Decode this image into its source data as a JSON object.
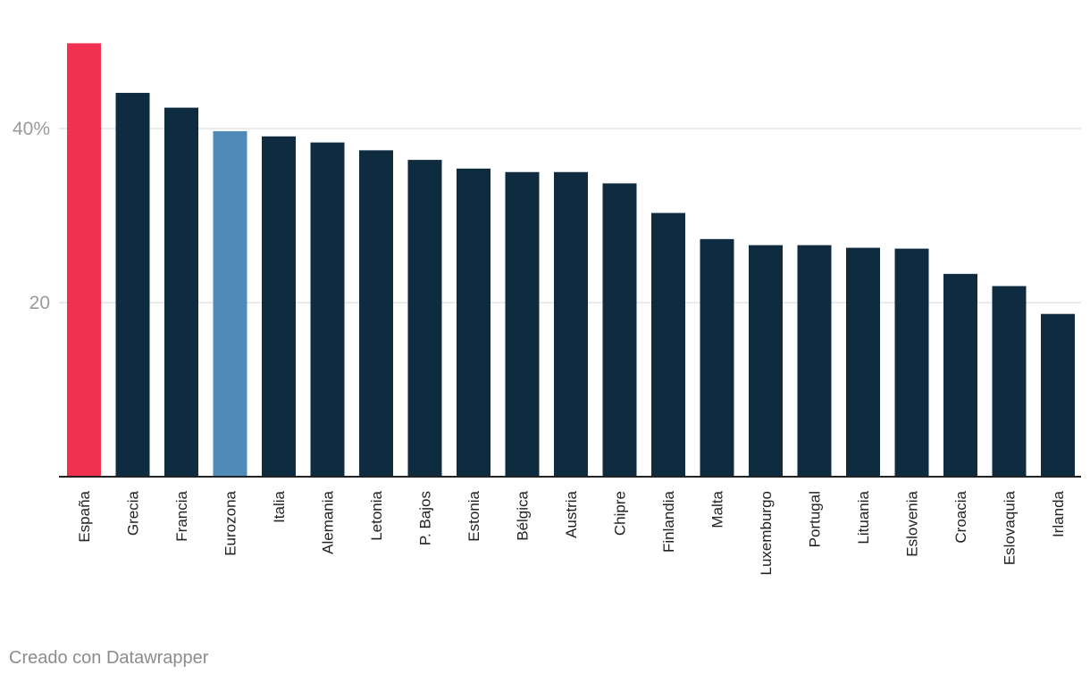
{
  "chart_data": {
    "type": "bar",
    "title": "",
    "xlabel": "",
    "ylabel": "",
    "ylim": [
      0,
      50
    ],
    "grid": "horizontal",
    "y_ticks": [
      {
        "value": 20,
        "label": "20"
      },
      {
        "value": 40,
        "label": "40%"
      }
    ],
    "categories": [
      "España",
      "Grecia",
      "Francia",
      "Eurozona",
      "Italia",
      "Alemania",
      "Letonia",
      "P. Bajos",
      "Estonia",
      "Bélgica",
      "Austria",
      "Chipre",
      "Finlandia",
      "Malta",
      "Luxemburgo",
      "Portugal",
      "Lituania",
      "Eslovenia",
      "Croacia",
      "Eslovaquia",
      "Irlanda"
    ],
    "values": [
      49.8,
      44.1,
      42.4,
      39.7,
      39.1,
      38.4,
      37.5,
      36.4,
      35.4,
      35.0,
      35.0,
      33.7,
      30.3,
      27.3,
      26.6,
      26.6,
      26.3,
      26.2,
      23.3,
      21.9,
      18.7
    ],
    "colors": {
      "default": "#0e2b40",
      "highlight": "#f0314f",
      "average": "#4f8bb8",
      "grid": "#e3e3e3",
      "axis": "#222222"
    },
    "highlight_category": "España",
    "average_category": "Eurozona"
  },
  "footer": {
    "credit": "Creado con Datawrapper"
  }
}
